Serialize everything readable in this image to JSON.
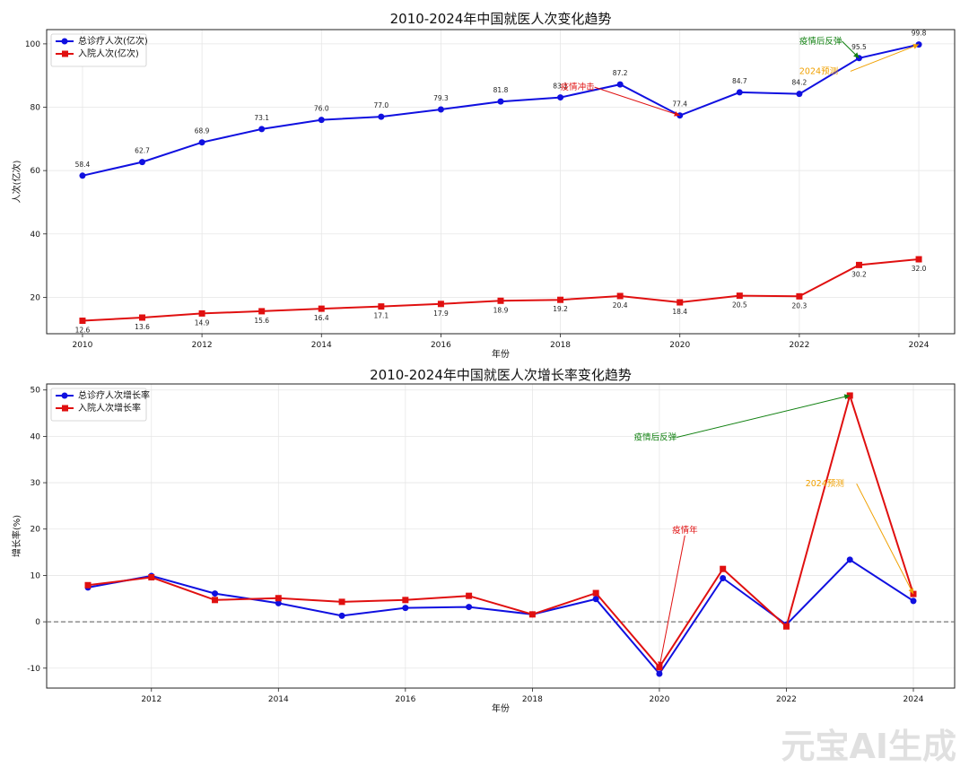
{
  "chart_data": [
    {
      "type": "line",
      "title": "2010-2024年中国就医人次变化趋势",
      "xlabel": "年份",
      "ylabel": "人次(亿次)",
      "xlim": [
        2009.4,
        2024.6
      ],
      "ylim": [
        8.5,
        104.5
      ],
      "xticks": [
        2010,
        2012,
        2014,
        2016,
        2018,
        2020,
        2022,
        2024
      ],
      "yticks": [
        20,
        40,
        60,
        80,
        100
      ],
      "grid": true,
      "legend": "top-left",
      "x": [
        2010,
        2011,
        2012,
        2013,
        2014,
        2015,
        2016,
        2017,
        2018,
        2019,
        2020,
        2021,
        2022,
        2023,
        2024
      ],
      "series": [
        {
          "name": "总诊疗人次(亿次)",
          "color": "#1010e0",
          "marker": "circle",
          "values": [
            58.4,
            62.7,
            68.9,
            73.1,
            76.0,
            77.0,
            79.3,
            81.8,
            83.1,
            87.2,
            77.4,
            84.7,
            84.2,
            95.5,
            99.8
          ],
          "labels": [
            "58.4",
            "62.7",
            "68.9",
            "73.1",
            "76.0",
            "77.0",
            "79.3",
            "81.8",
            "83.1",
            "87.2",
            "77.4",
            "84.7",
            "84.2",
            "95.5",
            "99.8"
          ]
        },
        {
          "name": "入院人次(亿次)",
          "color": "#e01010",
          "marker": "square",
          "values": [
            12.6,
            13.6,
            14.9,
            15.6,
            16.4,
            17.1,
            17.9,
            18.9,
            19.2,
            20.4,
            18.4,
            20.5,
            20.3,
            30.2,
            32.0
          ],
          "labels": [
            "12.6",
            "13.6",
            "14.9",
            "15.6",
            "16.4",
            "17.1",
            "17.9",
            "18.9",
            "19.2",
            "20.4",
            "18.4",
            "20.5",
            "20.3",
            "30.2",
            "32.0"
          ]
        }
      ],
      "annotations": [
        {
          "text": "疫情冲击",
          "color": "#e01010",
          "text_xy": [
            2018.0,
            85.5
          ],
          "arrow_to": [
            2020,
            77.4
          ]
        },
        {
          "text": "疫情后反弹",
          "color": "#108010",
          "text_xy": [
            2022.0,
            100.0
          ],
          "arrow_to": [
            2023,
            95.5
          ]
        },
        {
          "text": "2024预测",
          "color": "#f0a000",
          "text_xy": [
            2022.0,
            90.5
          ],
          "arrow_to": [
            2024,
            99.8
          ]
        }
      ]
    },
    {
      "type": "line",
      "title": "2010-2024年中国就医人次增长率变化趋势",
      "xlabel": "年份",
      "ylabel": "增长率(%)",
      "xlim": [
        2010.35,
        2024.65
      ],
      "ylim": [
        -14.3,
        51.3
      ],
      "xticks": [
        2012,
        2014,
        2016,
        2018,
        2020,
        2022,
        2024
      ],
      "yticks": [
        -10,
        0,
        10,
        20,
        30,
        40,
        50
      ],
      "grid": true,
      "legend": "top-left",
      "zero_line": true,
      "x": [
        2011,
        2012,
        2013,
        2014,
        2015,
        2016,
        2017,
        2018,
        2019,
        2020,
        2021,
        2022,
        2023,
        2024
      ],
      "series": [
        {
          "name": "总诊疗人次增长率",
          "color": "#1010e0",
          "marker": "circle",
          "values": [
            7.4,
            9.9,
            6.1,
            4.0,
            1.3,
            3.0,
            3.2,
            1.6,
            4.9,
            -11.2,
            9.4,
            -0.6,
            13.4,
            4.5
          ]
        },
        {
          "name": "入院人次增长率",
          "color": "#e01010",
          "marker": "square",
          "values": [
            7.9,
            9.6,
            4.7,
            5.1,
            4.3,
            4.7,
            5.6,
            1.6,
            6.2,
            -9.8,
            11.4,
            -1.0,
            48.8,
            6.0
          ]
        }
      ],
      "annotations": [
        {
          "text": "疫情年",
          "color": "#e01010",
          "text_xy": [
            2020.2,
            19.2
          ],
          "arrow_to": [
            2020,
            -9.8
          ]
        },
        {
          "text": "疫情后反弹",
          "color": "#108010",
          "text_xy": [
            2019.6,
            39.2
          ],
          "arrow_to": [
            2023,
            48.8
          ]
        },
        {
          "text": "2024预测",
          "color": "#f0a000",
          "text_xy": [
            2022.3,
            29.2
          ],
          "arrow_to": [
            2024,
            6.0
          ]
        }
      ]
    }
  ],
  "watermark": "元宝AI生成"
}
